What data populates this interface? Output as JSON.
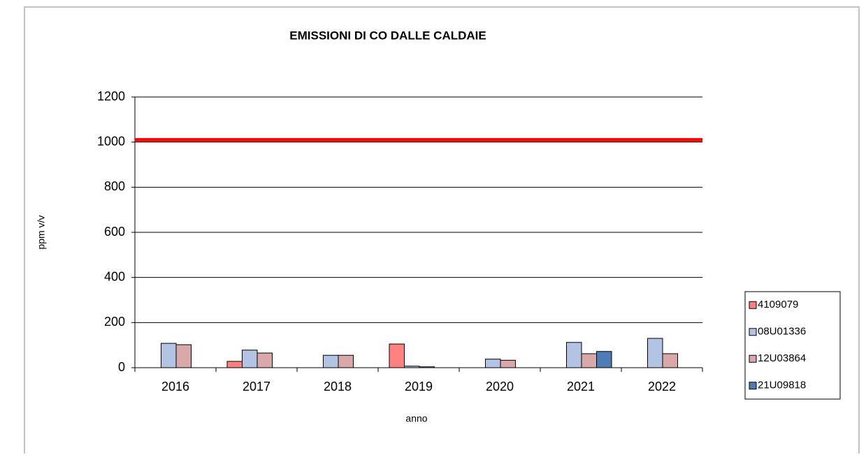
{
  "chart_data": {
    "type": "bar",
    "title": "EMISSIONI DI CO DALLE CALDAIE",
    "x_label": "anno",
    "y_label": "ppm v/v",
    "categories": [
      "2016",
      "2017",
      "2018",
      "2019",
      "2020",
      "2021",
      "2022"
    ],
    "series": [
      {
        "name": "4109079",
        "color": "#ff8080",
        "values": [
          null,
          28,
          null,
          105,
          null,
          null,
          null
        ]
      },
      {
        "name": "08U01336",
        "color": "#b3c3e3",
        "values": [
          108,
          78,
          55,
          7,
          38,
          112,
          130
        ]
      },
      {
        "name": "12U03864",
        "color": "#d9a9a9",
        "values": [
          102,
          65,
          55,
          4,
          33,
          62,
          62
        ]
      },
      {
        "name": "21U09818",
        "color": "#4f7cb4",
        "values": [
          null,
          null,
          null,
          null,
          null,
          72,
          null
        ]
      }
    ],
    "limit_line": {
      "value": 1010,
      "color": "#ff0000"
    },
    "ylim": [
      0,
      1200
    ],
    "yticks": [
      0,
      200,
      400,
      600,
      800,
      1000,
      1200
    ],
    "grid": true,
    "legend": "right"
  }
}
